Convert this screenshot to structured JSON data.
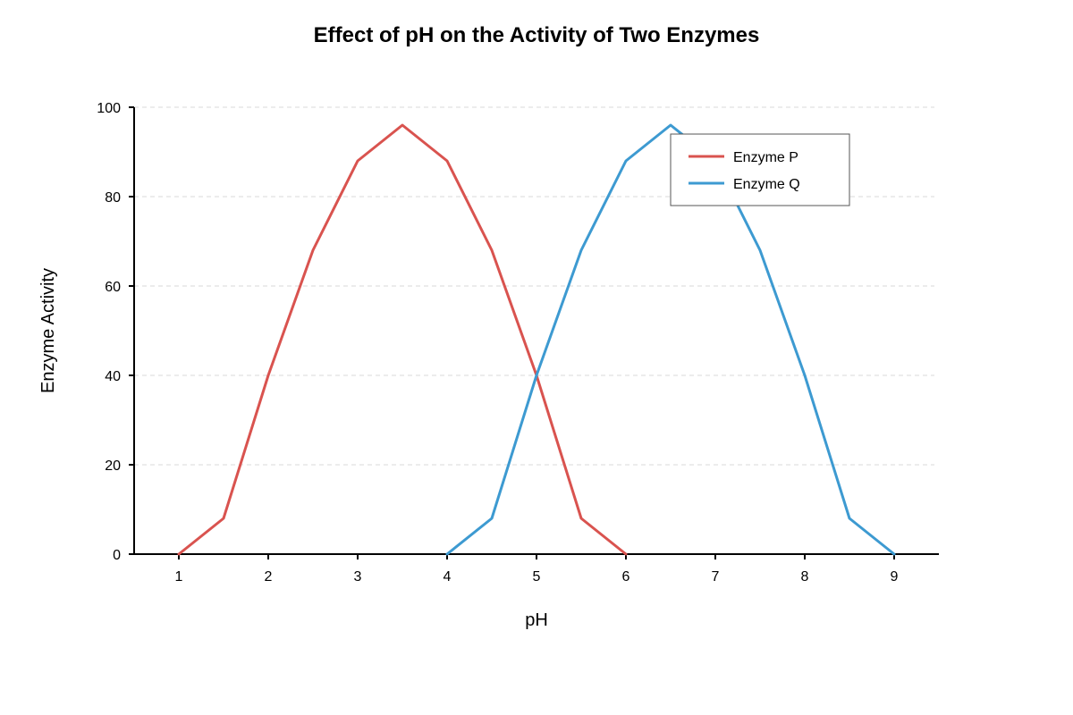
{
  "chart_data": {
    "type": "line",
    "title": "Effect of pH on the Activity of Two Enzymes",
    "xlabel": "pH",
    "ylabel": "Enzyme Activity",
    "xlim": [
      0.5,
      9.5
    ],
    "ylim": [
      0,
      100
    ],
    "xticks": [
      1,
      2,
      3,
      4,
      5,
      6,
      7,
      8,
      9
    ],
    "yticks": [
      0,
      20,
      40,
      60,
      80,
      100
    ],
    "grid": "horizontal-dashed",
    "legend_position": "top-right",
    "series": [
      {
        "name": "Enzyme P",
        "color": "#d9534f",
        "x": [
          1,
          1.5,
          2,
          2.5,
          3,
          3.5,
          4,
          4.5,
          5,
          5.5,
          6
        ],
        "y": [
          0,
          8,
          40,
          68,
          88,
          96,
          88,
          68,
          40,
          8,
          0
        ]
      },
      {
        "name": "Enzyme Q",
        "color": "#3d9ad1",
        "x": [
          4,
          4.5,
          5,
          5.5,
          6,
          6.5,
          7,
          7.5,
          8,
          8.5,
          9
        ],
        "y": [
          0,
          8,
          40,
          68,
          88,
          96,
          88,
          68,
          40,
          8,
          0
        ]
      }
    ]
  }
}
